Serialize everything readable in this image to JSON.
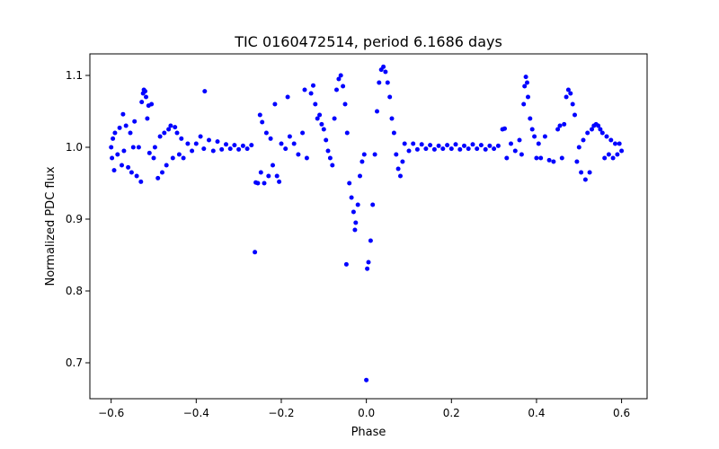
{
  "chart_data": {
    "type": "scatter",
    "title": "TIC 0160472514, period 6.1686 days",
    "xlabel": "Phase",
    "ylabel": "Normalized PDC flux",
    "xlim": [
      -0.65,
      0.66
    ],
    "ylim": [
      0.65,
      1.13
    ],
    "x_ticks": [
      -0.6,
      -0.4,
      -0.2,
      0.0,
      0.2,
      0.4,
      0.6
    ],
    "x_tick_labels": [
      "−0.6",
      "−0.4",
      "−0.2",
      "0.0",
      "0.2",
      "0.4",
      "0.6"
    ],
    "y_ticks": [
      0.7,
      0.8,
      0.9,
      1.0,
      1.1
    ],
    "y_tick_labels": [
      "0.7",
      "0.8",
      "0.9",
      "1.0",
      "1.1"
    ],
    "grid": false,
    "marker_color": "#0000ff",
    "series": [
      {
        "points": [
          [
            -0.6,
            1.0
          ],
          [
            -0.598,
            0.985
          ],
          [
            -0.596,
            1.012
          ],
          [
            -0.593,
            0.968
          ],
          [
            -0.591,
            1.02
          ],
          [
            -0.585,
            0.99
          ],
          [
            -0.58,
            1.027
          ],
          [
            -0.575,
            0.975
          ],
          [
            -0.572,
            1.046
          ],
          [
            -0.57,
            0.995
          ],
          [
            -0.565,
            1.03
          ],
          [
            -0.56,
            0.972
          ],
          [
            -0.555,
            1.02
          ],
          [
            -0.552,
            0.965
          ],
          [
            -0.548,
            1.0
          ],
          [
            -0.545,
            1.036
          ],
          [
            -0.54,
            0.96
          ],
          [
            -0.535,
            1.0
          ],
          [
            -0.53,
            0.952
          ],
          [
            -0.528,
            1.063
          ],
          [
            -0.525,
            1.075
          ],
          [
            -0.523,
            1.08
          ],
          [
            -0.52,
            1.078
          ],
          [
            -0.518,
            1.07
          ],
          [
            -0.515,
            1.04
          ],
          [
            -0.512,
            1.058
          ],
          [
            -0.51,
            0.992
          ],
          [
            -0.505,
            1.06
          ],
          [
            -0.5,
            0.985
          ],
          [
            -0.497,
            1.0
          ],
          [
            -0.49,
            0.957
          ],
          [
            -0.485,
            1.015
          ],
          [
            -0.48,
            0.965
          ],
          [
            -0.475,
            1.02
          ],
          [
            -0.47,
            0.975
          ],
          [
            -0.465,
            1.025
          ],
          [
            -0.46,
            1.03
          ],
          [
            -0.455,
            0.985
          ],
          [
            -0.45,
            1.028
          ],
          [
            -0.445,
            1.02
          ],
          [
            -0.44,
            0.99
          ],
          [
            -0.435,
            1.012
          ],
          [
            -0.43,
            0.985
          ],
          [
            -0.42,
            1.005
          ],
          [
            -0.41,
            0.995
          ],
          [
            -0.4,
            1.005
          ],
          [
            -0.39,
            1.015
          ],
          [
            -0.382,
            0.998
          ],
          [
            -0.38,
            1.078
          ],
          [
            -0.37,
            1.01
          ],
          [
            -0.36,
            0.995
          ],
          [
            -0.35,
            1.008
          ],
          [
            -0.34,
            0.997
          ],
          [
            -0.33,
            1.004
          ],
          [
            -0.32,
            0.998
          ],
          [
            -0.31,
            1.003
          ],
          [
            -0.3,
            0.997
          ],
          [
            -0.29,
            1.002
          ],
          [
            -0.28,
            0.998
          ],
          [
            -0.27,
            1.003
          ],
          [
            -0.262,
            0.854
          ],
          [
            -0.26,
            0.951
          ],
          [
            -0.255,
            0.95
          ],
          [
            -0.25,
            1.045
          ],
          [
            -0.248,
            0.965
          ],
          [
            -0.245,
            1.035
          ],
          [
            -0.24,
            0.95
          ],
          [
            -0.235,
            1.02
          ],
          [
            -0.23,
            0.96
          ],
          [
            -0.225,
            1.012
          ],
          [
            -0.22,
            0.975
          ],
          [
            -0.215,
            1.06
          ],
          [
            -0.21,
            0.96
          ],
          [
            -0.205,
            0.952
          ],
          [
            -0.2,
            1.005
          ],
          [
            -0.19,
            0.998
          ],
          [
            -0.185,
            1.07
          ],
          [
            -0.18,
            1.015
          ],
          [
            -0.17,
            1.005
          ],
          [
            -0.16,
            0.99
          ],
          [
            -0.15,
            1.02
          ],
          [
            -0.145,
            1.08
          ],
          [
            -0.14,
            0.985
          ],
          [
            -0.13,
            1.075
          ],
          [
            -0.125,
            1.086
          ],
          [
            -0.12,
            1.06
          ],
          [
            -0.115,
            1.04
          ],
          [
            -0.11,
            1.045
          ],
          [
            -0.105,
            1.032
          ],
          [
            -0.1,
            1.025
          ],
          [
            -0.095,
            1.01
          ],
          [
            -0.09,
            0.995
          ],
          [
            -0.085,
            0.985
          ],
          [
            -0.08,
            0.975
          ],
          [
            -0.075,
            1.04
          ],
          [
            -0.07,
            1.08
          ],
          [
            -0.065,
            1.095
          ],
          [
            -0.06,
            1.1
          ],
          [
            -0.055,
            1.085
          ],
          [
            -0.05,
            1.06
          ],
          [
            -0.047,
            0.837
          ],
          [
            -0.045,
            1.02
          ],
          [
            -0.04,
            0.95
          ],
          [
            -0.035,
            0.93
          ],
          [
            -0.03,
            0.91
          ],
          [
            -0.027,
            0.885
          ],
          [
            -0.025,
            0.895
          ],
          [
            -0.02,
            0.92
          ],
          [
            -0.015,
            0.96
          ],
          [
            -0.01,
            0.98
          ],
          [
            -0.005,
            0.99
          ],
          [
            0.0,
            0.676
          ],
          [
            0.002,
            0.831
          ],
          [
            0.005,
            0.84
          ],
          [
            0.01,
            0.87
          ],
          [
            0.015,
            0.92
          ],
          [
            0.02,
            0.99
          ],
          [
            0.025,
            1.05
          ],
          [
            0.03,
            1.09
          ],
          [
            0.035,
            1.108
          ],
          [
            0.04,
            1.112
          ],
          [
            0.045,
            1.105
          ],
          [
            0.05,
            1.09
          ],
          [
            0.055,
            1.07
          ],
          [
            0.06,
            1.04
          ],
          [
            0.065,
            1.02
          ],
          [
            0.07,
            0.99
          ],
          [
            0.075,
            0.97
          ],
          [
            0.08,
            0.96
          ],
          [
            0.085,
            0.98
          ],
          [
            0.09,
            1.005
          ],
          [
            0.1,
            0.995
          ],
          [
            0.11,
            1.005
          ],
          [
            0.12,
            0.997
          ],
          [
            0.13,
            1.004
          ],
          [
            0.14,
            0.998
          ],
          [
            0.15,
            1.003
          ],
          [
            0.16,
            0.997
          ],
          [
            0.17,
            1.002
          ],
          [
            0.18,
            0.998
          ],
          [
            0.19,
            1.003
          ],
          [
            0.2,
            0.998
          ],
          [
            0.21,
            1.004
          ],
          [
            0.22,
            0.997
          ],
          [
            0.23,
            1.002
          ],
          [
            0.24,
            0.998
          ],
          [
            0.25,
            1.004
          ],
          [
            0.26,
            0.998
          ],
          [
            0.27,
            1.003
          ],
          [
            0.28,
            0.997
          ],
          [
            0.29,
            1.002
          ],
          [
            0.3,
            0.998
          ],
          [
            0.31,
            1.002
          ],
          [
            0.32,
            1.025
          ],
          [
            0.325,
            1.026
          ],
          [
            0.33,
            0.985
          ],
          [
            0.34,
            1.005
          ],
          [
            0.35,
            0.995
          ],
          [
            0.36,
            1.01
          ],
          [
            0.365,
            0.99
          ],
          [
            0.37,
            1.06
          ],
          [
            0.372,
            1.085
          ],
          [
            0.375,
            1.098
          ],
          [
            0.378,
            1.09
          ],
          [
            0.38,
            1.07
          ],
          [
            0.385,
            1.04
          ],
          [
            0.39,
            1.025
          ],
          [
            0.395,
            1.015
          ],
          [
            0.4,
            0.985
          ],
          [
            0.405,
            1.005
          ],
          [
            0.41,
            0.985
          ],
          [
            0.42,
            1.015
          ],
          [
            0.43,
            0.982
          ],
          [
            0.44,
            0.98
          ],
          [
            0.45,
            1.025
          ],
          [
            0.455,
            1.03
          ],
          [
            0.46,
            0.985
          ],
          [
            0.465,
            1.032
          ],
          [
            0.47,
            1.07
          ],
          [
            0.475,
            1.08
          ],
          [
            0.48,
            1.075
          ],
          [
            0.485,
            1.06
          ],
          [
            0.49,
            1.045
          ],
          [
            0.495,
            0.98
          ],
          [
            0.5,
            1.0
          ],
          [
            0.505,
            0.965
          ],
          [
            0.51,
            1.01
          ],
          [
            0.515,
            0.955
          ],
          [
            0.52,
            1.02
          ],
          [
            0.525,
            0.965
          ],
          [
            0.53,
            1.025
          ],
          [
            0.535,
            1.03
          ],
          [
            0.54,
            1.032
          ],
          [
            0.545,
            1.03
          ],
          [
            0.55,
            1.025
          ],
          [
            0.555,
            1.02
          ],
          [
            0.56,
            0.985
          ],
          [
            0.565,
            1.015
          ],
          [
            0.57,
            0.99
          ],
          [
            0.575,
            1.01
          ],
          [
            0.58,
            0.985
          ],
          [
            0.585,
            1.005
          ],
          [
            0.59,
            0.99
          ],
          [
            0.595,
            1.005
          ],
          [
            0.6,
            0.995
          ]
        ]
      }
    ]
  }
}
